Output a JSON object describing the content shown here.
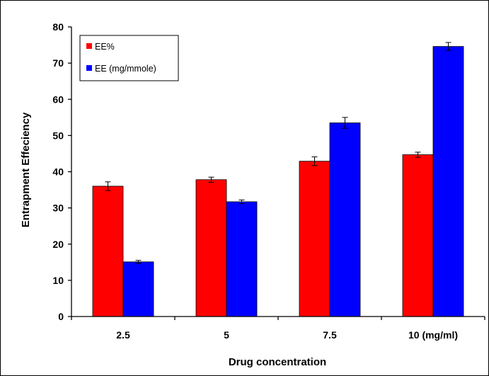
{
  "chart_data": {
    "type": "bar",
    "categories": [
      "2.5",
      "5",
      "7.5",
      "10 (mg/ml)"
    ],
    "series": [
      {
        "name": "EE%",
        "color": "#ff0000",
        "values": [
          36,
          37.8,
          42.9,
          44.7
        ],
        "errors": [
          1.2,
          0.7,
          1.2,
          0.7
        ]
      },
      {
        "name": "EE (mg/mmole)",
        "color": "#0000ff",
        "values": [
          15.1,
          31.7,
          53.5,
          74.6
        ],
        "errors": [
          0.4,
          0.5,
          1.5,
          1.1
        ]
      }
    ],
    "xlabel": "Drug concentration",
    "ylabel": "Entrapment Effeciency",
    "ylim": [
      0,
      80
    ],
    "yticks": [
      "0",
      "10",
      "20",
      "30",
      "40",
      "50",
      "60",
      "70",
      "80"
    ],
    "grid": false,
    "legend_position": "top-left"
  }
}
